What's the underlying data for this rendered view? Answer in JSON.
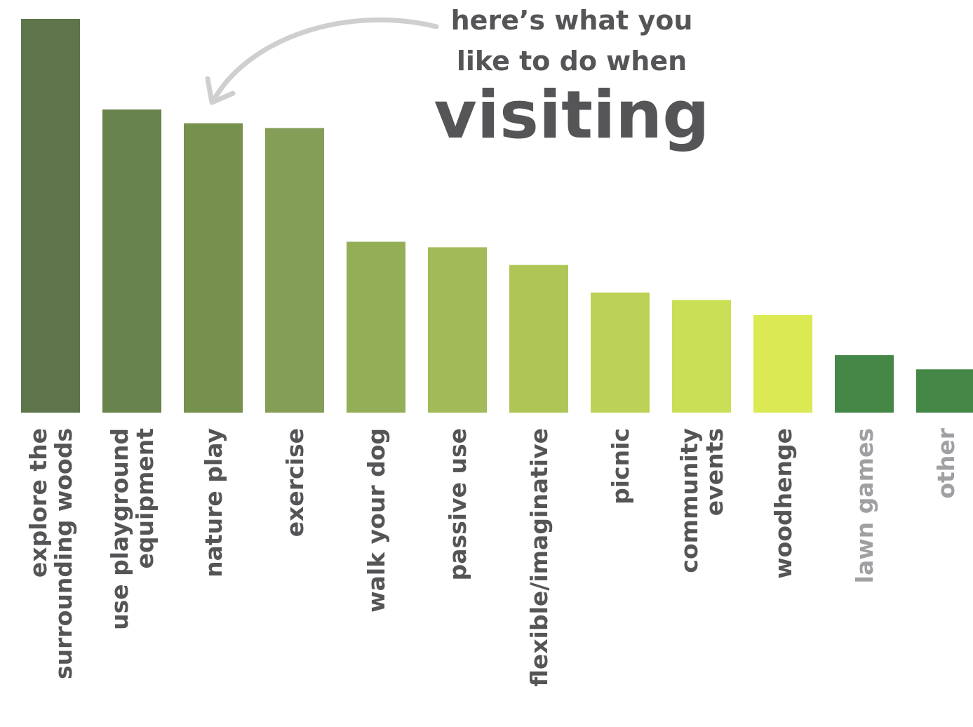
{
  "chart_data": {
    "type": "bar",
    "title_lines": [
      "here’s what you",
      "like to do when"
    ],
    "title_emphasis": "visiting",
    "xlabel": "",
    "ylabel": "",
    "ylim": [
      0,
      100
    ],
    "grid": false,
    "legend": "none",
    "annotation": "curved-arrow from title pointing to bars",
    "categories": [
      {
        "label_lines": [
          "explore the",
          "surrounding woods"
        ],
        "value": 100,
        "color": "#5e754b",
        "label_color": "#555558"
      },
      {
        "label_lines": [
          "use playground",
          "equipment"
        ],
        "value": 77,
        "color": "#68834b",
        "label_color": "#555558"
      },
      {
        "label_lines": [
          "nature play"
        ],
        "value": 73.5,
        "color": "#76904e",
        "label_color": "#555558"
      },
      {
        "label_lines": [
          "exercise"
        ],
        "value": 72.3,
        "color": "#849e58",
        "label_color": "#555558"
      },
      {
        "label_lines": [
          "walk your dog"
        ],
        "value": 43.4,
        "color": "#93ae56",
        "label_color": "#555558"
      },
      {
        "label_lines": [
          "passive use"
        ],
        "value": 42,
        "color": "#a2bb58",
        "label_color": "#555558"
      },
      {
        "label_lines": [
          "flexible/imaginative"
        ],
        "value": 37.5,
        "color": "#aec656",
        "label_color": "#555558"
      },
      {
        "label_lines": [
          "picnic"
        ],
        "value": 30.5,
        "color": "#bbd256",
        "label_color": "#555558"
      },
      {
        "label_lines": [
          "community",
          "events"
        ],
        "value": 28.6,
        "color": "#cbdf56",
        "label_color": "#555558"
      },
      {
        "label_lines": [
          "woodhenge"
        ],
        "value": 24.8,
        "color": "#dbea52",
        "label_color": "#555558"
      },
      {
        "label_lines": [
          "lawn games"
        ],
        "value": 14.6,
        "color": "#458747",
        "label_color": "#a0a0a4"
      },
      {
        "label_lines": [
          "other"
        ],
        "value": 11,
        "color": "#458747",
        "label_color": "#a0a0a4"
      }
    ]
  }
}
